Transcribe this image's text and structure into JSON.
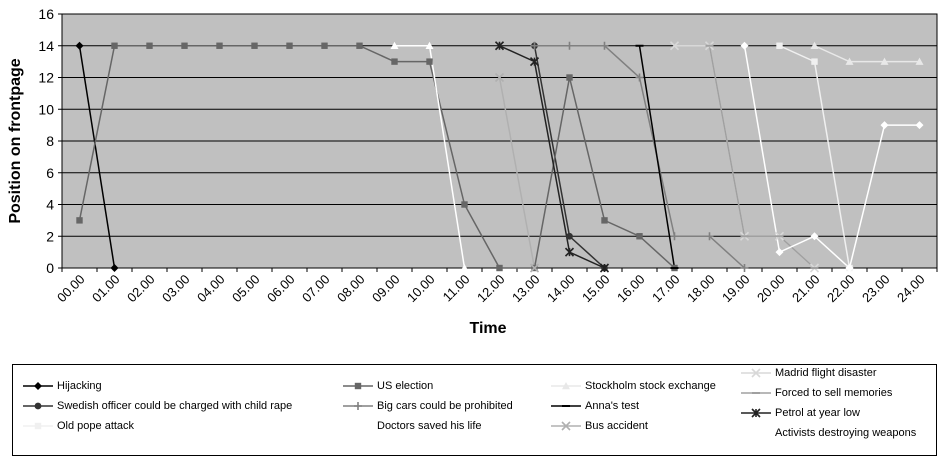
{
  "chart_data": {
    "type": "line",
    "title": "",
    "xlabel": "Time",
    "ylabel": "Position on frontpage",
    "ylim": [
      0,
      16
    ],
    "yticks": [
      "0",
      "2",
      "4",
      "6",
      "8",
      "10",
      "12",
      "14",
      "16"
    ],
    "categories": [
      "00.00",
      "01.00",
      "02.00",
      "03.00",
      "04.00",
      "05.00",
      "06.00",
      "07.00",
      "08.00",
      "09.00",
      "10.00",
      "11.00",
      "12.00",
      "13.00",
      "14.00",
      "15.00",
      "16.00",
      "17.00",
      "18.00",
      "19.00",
      "20.00",
      "21.00",
      "22.00",
      "23.00",
      "24.00"
    ],
    "grid": "horizontal",
    "plot_background": "#c0c0c0",
    "legend_placement": "bottom",
    "series": [
      {
        "name": "Hijacking",
        "color": "#000000",
        "marker": "diamond",
        "points": [
          [
            0.5,
            14
          ],
          [
            1.5,
            0
          ]
        ]
      },
      {
        "name": "Swedish officer could be charged with child rape",
        "color": "#333333",
        "marker": "circle",
        "points": [
          [
            13.5,
            14
          ],
          [
            14.5,
            2
          ],
          [
            15.5,
            0
          ]
        ]
      },
      {
        "name": "Old pope attack",
        "color": "#f0f0f0",
        "marker": "square",
        "points": [
          [
            20.5,
            14
          ],
          [
            21.5,
            13
          ],
          [
            22.5,
            0
          ]
        ]
      },
      {
        "name": "US election",
        "color": "#666666",
        "marker": "square",
        "points": [
          [
            0.5,
            3
          ],
          [
            1.5,
            14
          ],
          [
            2.5,
            14
          ],
          [
            3.5,
            14
          ],
          [
            4.5,
            14
          ],
          [
            5.5,
            14
          ],
          [
            6.5,
            14
          ],
          [
            7.5,
            14
          ],
          [
            8.5,
            14
          ],
          [
            9.5,
            13
          ],
          [
            10.5,
            13
          ],
          [
            11.5,
            4
          ],
          [
            12.5,
            0
          ],
          [
            13.5,
            0
          ],
          [
            14.5,
            12
          ],
          [
            15.5,
            3
          ],
          [
            16.5,
            2
          ],
          [
            17.5,
            0
          ]
        ]
      },
      {
        "name": "Big cars could be prohibited",
        "color": "#808080",
        "marker": "plus",
        "points": [
          [
            13.5,
            14
          ],
          [
            14.5,
            14
          ],
          [
            15.5,
            14
          ],
          [
            16.5,
            12
          ],
          [
            17.5,
            2
          ],
          [
            18.5,
            2
          ],
          [
            19.5,
            0
          ]
        ]
      },
      {
        "name": "Doctors saved his life",
        "color": "#ffffff",
        "marker": "triangle",
        "points": [
          [
            9.5,
            14
          ],
          [
            10.5,
            14
          ],
          [
            11.5,
            0
          ]
        ]
      },
      {
        "name": "Stockholm stock exchange",
        "color": "#e8e8e8",
        "marker": "triangle",
        "points": [
          [
            21.5,
            14
          ],
          [
            22.5,
            13
          ],
          [
            23.5,
            13
          ],
          [
            24.5,
            13
          ]
        ]
      },
      {
        "name": "Anna's test",
        "color": "#000000",
        "marker": "dash",
        "points": [
          [
            16.5,
            14
          ],
          [
            17.5,
            0
          ]
        ]
      },
      {
        "name": "Bus accident",
        "color": "#b0b0b0",
        "marker": "x",
        "points": [
          [
            12.5,
            12
          ],
          [
            13.5,
            0
          ]
        ]
      },
      {
        "name": "Madrid flight disaster",
        "color": "#d8d8d8",
        "marker": "x",
        "points": [
          [
            17.5,
            14
          ],
          [
            18.5,
            14
          ],
          [
            19.5,
            2
          ],
          [
            20.5,
            2
          ],
          [
            21.5,
            0
          ]
        ]
      },
      {
        "name": "Forced to sell memories",
        "color": "#a0a0a0",
        "marker": "dash",
        "points": [
          [
            18.5,
            14
          ],
          [
            19.5,
            2
          ],
          [
            20.5,
            2
          ],
          [
            21.5,
            0
          ]
        ]
      },
      {
        "name": "Petrol at year low",
        "color": "#222222",
        "marker": "star",
        "points": [
          [
            12.5,
            14
          ],
          [
            13.5,
            13
          ],
          [
            14.5,
            1
          ],
          [
            15.5,
            0
          ]
        ]
      },
      {
        "name": "Activists destroying weapons",
        "color": "#ffffff",
        "marker": "diamond",
        "points": [
          [
            19.5,
            14
          ],
          [
            20.5,
            1
          ],
          [
            21.5,
            2
          ],
          [
            22.5,
            0
          ],
          [
            23.5,
            9
          ],
          [
            24.5,
            9
          ]
        ]
      }
    ]
  }
}
